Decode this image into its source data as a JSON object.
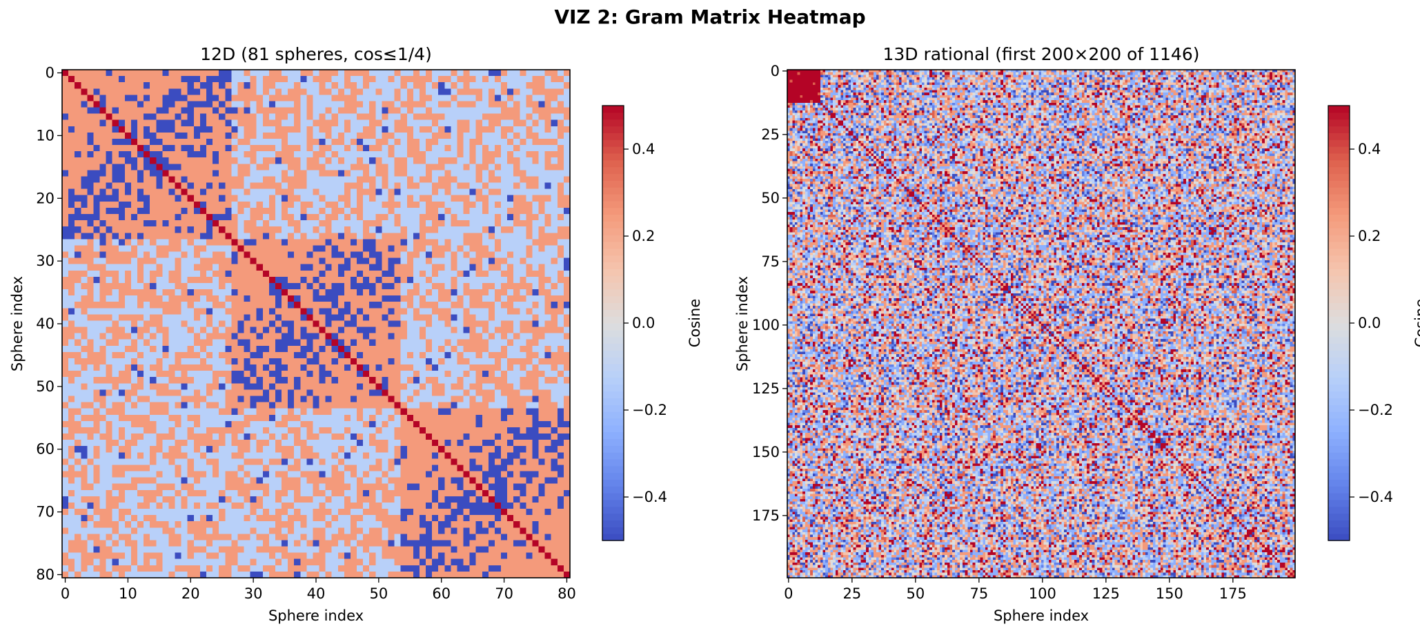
{
  "figure": {
    "title": "VIZ 2: Gram Matrix Heatmap"
  },
  "chart_data": [
    {
      "type": "heatmap",
      "title": "12D (81 spheres, cos≤1/4)",
      "xlabel": "Sphere index",
      "ylabel": "Sphere index",
      "size": 81,
      "xticks": [
        0,
        10,
        20,
        30,
        40,
        50,
        60,
        70,
        80
      ],
      "yticks": [
        0,
        10,
        20,
        30,
        40,
        50,
        60,
        70,
        80
      ],
      "xlim": [
        0,
        80
      ],
      "ylim": [
        80,
        0
      ],
      "color_range": [
        -0.5,
        0.5
      ],
      "colormap": "coolwarm",
      "diagonal_value": 0.5,
      "values_present": [
        -0.5,
        -0.125,
        0.25,
        0.5
      ],
      "block_size": 27,
      "in_block_low_value": -0.5,
      "in_block_high_value": 0.25,
      "off_block_values": [
        -0.125,
        0.25,
        -0.5
      ],
      "colorbar": {
        "label": "Cosine",
        "ticks": [
          -0.4,
          -0.2,
          0.0,
          0.2,
          0.4
        ],
        "tick_labels": [
          "−0.4",
          "−0.2",
          "0.0",
          "0.2",
          "0.4"
        ]
      }
    },
    {
      "type": "heatmap",
      "title": "13D rational (first 200×200 of 1146)",
      "xlabel": "Sphere index",
      "ylabel": "Sphere index",
      "size": 200,
      "xticks": [
        0,
        25,
        50,
        75,
        100,
        125,
        150,
        175
      ],
      "yticks": [
        0,
        25,
        50,
        75,
        100,
        125,
        150,
        175
      ],
      "xlim": [
        0,
        199
      ],
      "ylim": [
        199,
        0
      ],
      "color_range": [
        -0.5,
        0.5
      ],
      "colormap": "coolwarm",
      "diagonal_value": 0.5,
      "top_left_block": {
        "size": 13,
        "value": 0.5
      },
      "colorbar": {
        "label": "Cosine",
        "ticks": [
          -0.4,
          -0.2,
          0.0,
          0.2,
          0.4
        ],
        "tick_labels": [
          "−0.4",
          "−0.2",
          "0.0",
          "0.2",
          "0.4"
        ]
      }
    }
  ]
}
